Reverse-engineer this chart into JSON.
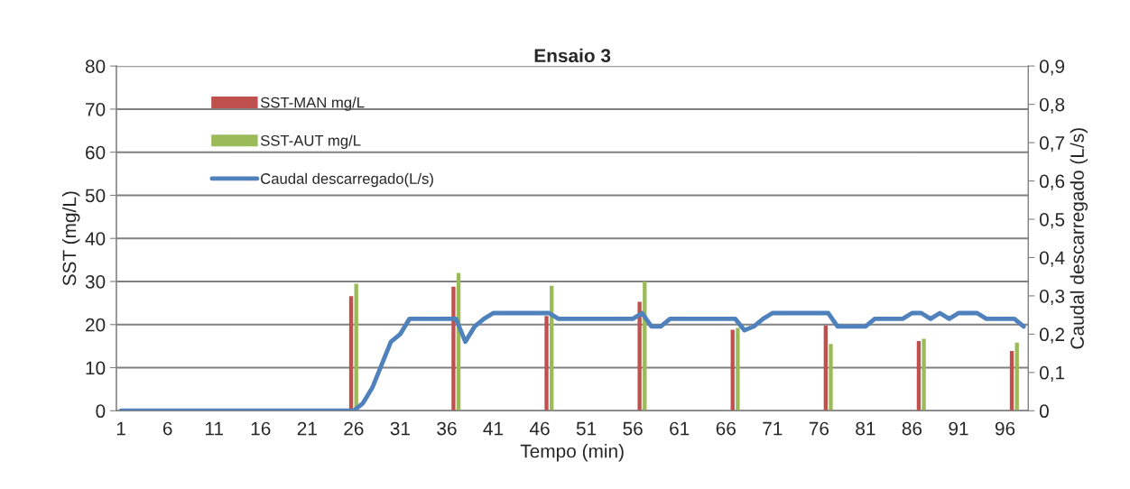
{
  "chart_data": {
    "type": "bar",
    "title": "Ensaio 3",
    "xlabel": "Tempo (min)",
    "ylabel": "SST (mg/L)",
    "y2label": "Caudal descarregado (L/s)",
    "categories": [
      "1",
      null,
      null,
      null,
      null,
      "6",
      null,
      null,
      null,
      null,
      "11",
      null,
      null,
      null,
      null,
      "16",
      null,
      null,
      null,
      null,
      "21",
      null,
      null,
      null,
      null,
      "26",
      null,
      null,
      null,
      null,
      "31",
      null,
      null,
      null,
      null,
      "36",
      null,
      null,
      null,
      null,
      "41",
      null,
      null,
      null,
      null,
      "46",
      null,
      null,
      null,
      null,
      "51",
      null,
      null,
      null,
      null,
      "56",
      null,
      null,
      null,
      null,
      "61",
      null,
      null,
      null,
      null,
      "66",
      null,
      null,
      null,
      null,
      "71",
      null,
      null,
      null,
      null,
      "76",
      null,
      null,
      null,
      null,
      "81",
      null,
      null,
      null,
      null,
      "86",
      null,
      null,
      null,
      null,
      "91",
      null,
      null,
      null,
      null,
      "96",
      null,
      null
    ],
    "series": [
      {
        "name": "SST-MAN mg/L",
        "color": "#c0504d",
        "values": [
          null,
          null,
          null,
          null,
          null,
          null,
          null,
          null,
          null,
          null,
          null,
          null,
          null,
          null,
          null,
          null,
          null,
          null,
          null,
          null,
          null,
          null,
          null,
          null,
          null,
          26.6,
          null,
          null,
          null,
          null,
          null,
          null,
          null,
          null,
          null,
          null,
          28.8,
          null,
          null,
          null,
          null,
          null,
          null,
          null,
          null,
          null,
          22,
          null,
          null,
          null,
          null,
          null,
          null,
          null,
          null,
          null,
          25.3,
          null,
          null,
          null,
          null,
          null,
          null,
          null,
          null,
          null,
          18.8,
          null,
          null,
          null,
          null,
          null,
          null,
          null,
          null,
          null,
          19.8,
          null,
          null,
          null,
          null,
          null,
          null,
          null,
          null,
          null,
          16.2,
          null,
          null,
          null,
          null,
          null,
          null,
          null,
          null,
          null,
          13.9,
          null
        ]
      },
      {
        "name": "SST-AUT mg/L",
        "color": "#9bbb59",
        "values": [
          null,
          null,
          null,
          null,
          null,
          null,
          null,
          null,
          null,
          null,
          null,
          null,
          null,
          null,
          null,
          null,
          null,
          null,
          null,
          null,
          null,
          null,
          null,
          null,
          null,
          29.5,
          null,
          null,
          null,
          null,
          null,
          null,
          null,
          null,
          null,
          null,
          32,
          null,
          null,
          null,
          null,
          null,
          null,
          null,
          null,
          null,
          29,
          null,
          null,
          null,
          null,
          null,
          null,
          null,
          null,
          null,
          30,
          null,
          null,
          null,
          null,
          null,
          null,
          null,
          null,
          null,
          19.2,
          null,
          null,
          null,
          null,
          null,
          null,
          null,
          null,
          null,
          15.5,
          null,
          null,
          null,
          null,
          null,
          null,
          null,
          null,
          null,
          16.7,
          null,
          null,
          null,
          null,
          null,
          null,
          null,
          null,
          null,
          15.8,
          null
        ]
      },
      {
        "name": "Caudal descarregado(L/s)",
        "type": "line",
        "axis": "y2",
        "color": "#4f81bd",
        "values": [
          0,
          0,
          0,
          0,
          0,
          0,
          0,
          0,
          0,
          0,
          0,
          0,
          0,
          0,
          0,
          0,
          0,
          0,
          0,
          0,
          0,
          0,
          0,
          0,
          0,
          0,
          0.02,
          0.06,
          0.12,
          0.18,
          0.2,
          0.24,
          0.24,
          0.24,
          0.24,
          0.24,
          0.24,
          0.18,
          0.22,
          0.24,
          0.255,
          0.255,
          0.255,
          0.255,
          0.255,
          0.255,
          0.255,
          0.24,
          0.24,
          0.24,
          0.24,
          0.24,
          0.24,
          0.24,
          0.24,
          0.24,
          0.255,
          0.22,
          0.22,
          0.24,
          0.24,
          0.24,
          0.24,
          0.24,
          0.24,
          0.24,
          0.24,
          0.21,
          0.22,
          0.24,
          0.255,
          0.255,
          0.255,
          0.255,
          0.255,
          0.255,
          0.255,
          0.22,
          0.22,
          0.22,
          0.22,
          0.24,
          0.24,
          0.24,
          0.24,
          0.255,
          0.255,
          0.24,
          0.255,
          0.24,
          0.255,
          0.255,
          0.255,
          0.24,
          0.24,
          0.24,
          0.24,
          0.22
        ]
      }
    ],
    "ylim": [
      0,
      80
    ],
    "yticks": [
      0,
      10,
      20,
      30,
      40,
      50,
      60,
      70,
      80
    ],
    "y2lim": [
      0,
      0.9
    ],
    "y2ticks": [
      0,
      {
        "value": 0.1,
        "label": "0,1"
      },
      {
        "value": 0.2,
        "label": "0,2"
      },
      {
        "value": 0.3,
        "label": "0,3"
      },
      {
        "value": 0.4,
        "label": "0,4"
      },
      {
        "value": 0.5,
        "label": "0,5"
      },
      {
        "value": 0.6,
        "label": "0,6"
      },
      {
        "value": 0.7,
        "label": "0,7"
      },
      {
        "value": 0.8,
        "label": "0,8"
      },
      {
        "value": 0.9,
        "label": "0,9"
      }
    ],
    "grid": "y",
    "legend": "top left",
    "marker": "none",
    "line_style": "solid"
  }
}
